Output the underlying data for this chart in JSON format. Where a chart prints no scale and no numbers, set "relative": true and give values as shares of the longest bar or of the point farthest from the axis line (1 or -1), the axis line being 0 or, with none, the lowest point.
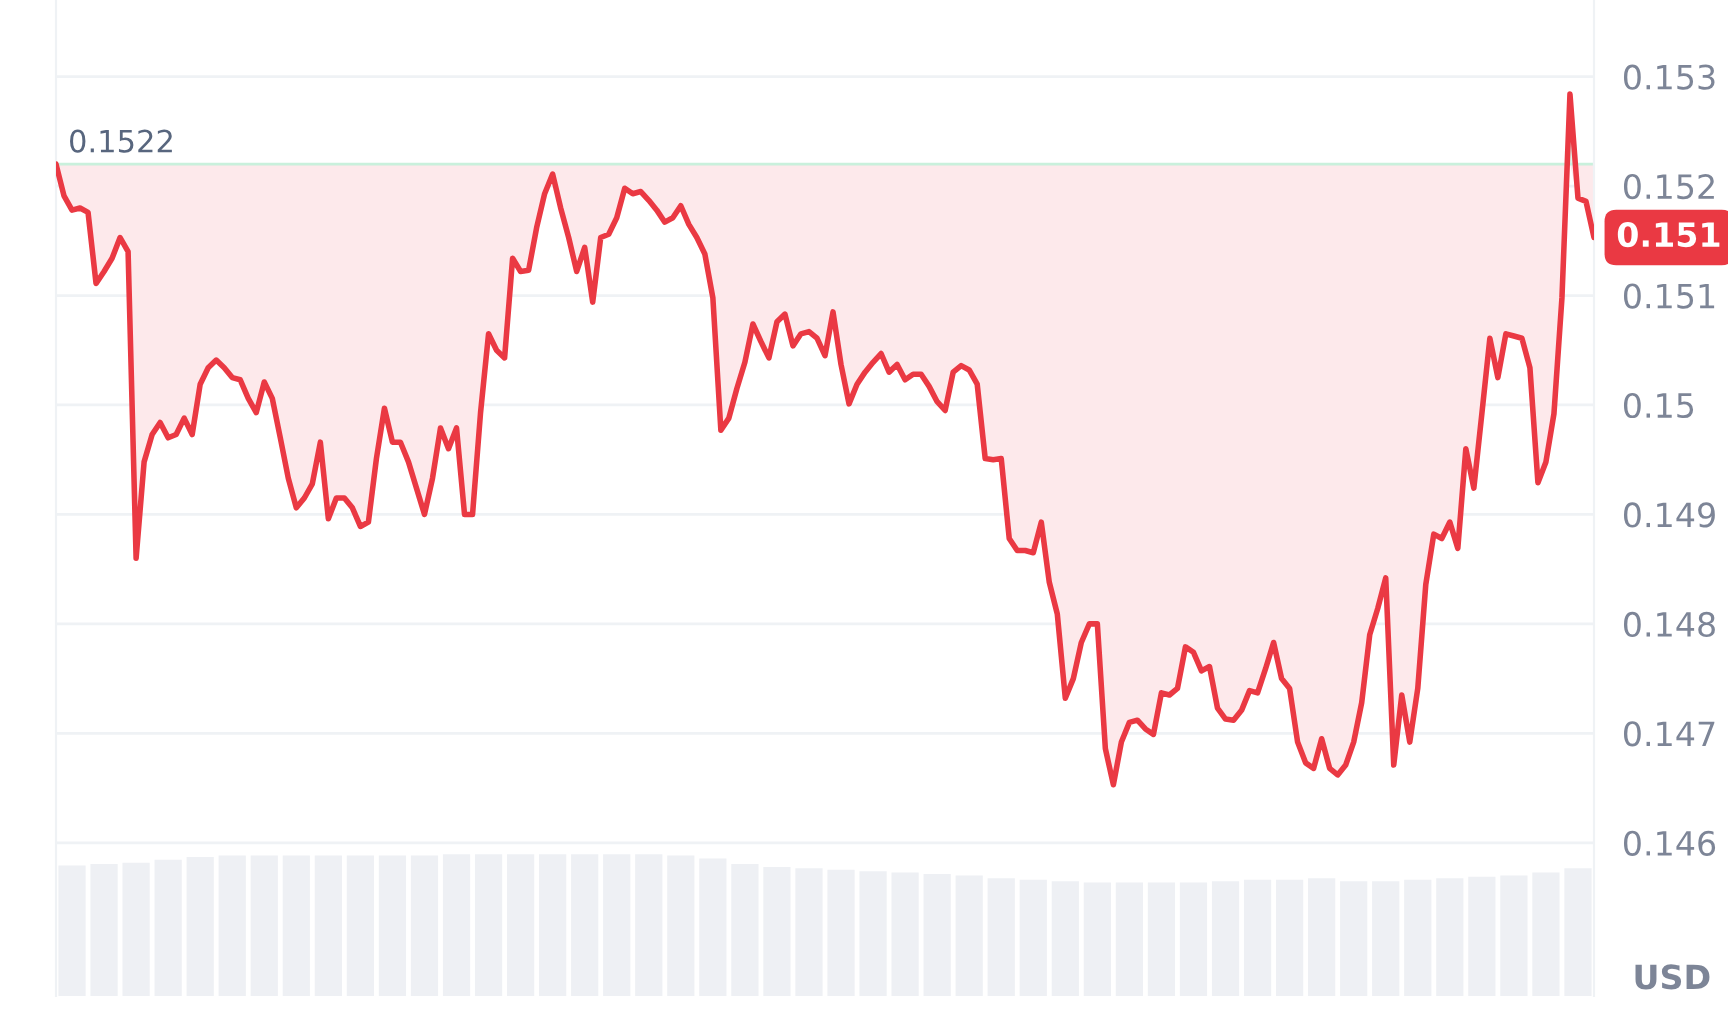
{
  "chart_data": [
    {
      "type": "line",
      "categories": [
        null,
        null,
        null,
        null,
        null,
        null,
        null,
        null,
        null,
        null,
        null,
        null,
        null,
        null,
        null,
        null,
        null,
        null,
        null,
        null,
        null,
        null,
        null,
        null,
        null,
        null,
        null,
        null,
        null,
        null,
        null,
        null,
        null,
        null,
        null,
        null,
        null,
        null,
        null,
        null,
        null,
        null,
        null,
        null,
        null,
        null,
        null,
        null,
        null,
        null,
        null,
        null,
        null,
        null,
        null,
        null,
        null,
        null,
        null,
        null,
        null,
        null,
        null,
        null,
        null,
        null,
        null,
        null,
        null,
        null,
        null,
        null,
        null,
        null,
        null,
        null,
        null,
        null,
        null,
        null,
        null,
        null,
        null,
        null,
        null,
        null,
        null,
        null,
        null,
        null,
        null,
        null,
        null,
        null,
        null,
        null,
        null,
        null,
        null,
        null,
        null,
        null,
        null,
        null,
        null,
        null,
        null,
        null,
        null,
        null,
        null,
        null,
        null,
        null,
        null,
        null,
        null,
        null,
        null,
        null,
        null,
        null,
        null,
        null,
        null,
        null,
        null,
        null,
        null,
        null,
        null,
        null,
        null,
        null,
        null,
        null,
        null,
        null,
        null,
        null,
        null,
        null,
        null,
        null,
        null,
        null,
        null,
        null,
        null,
        null,
        null,
        null,
        null,
        null,
        null,
        null,
        null,
        null,
        null,
        null,
        null,
        null,
        null,
        null,
        null,
        null,
        null,
        null,
        null,
        null,
        null,
        null,
        null,
        null,
        null,
        null,
        null,
        null,
        null,
        null,
        null,
        null,
        null,
        null,
        null,
        null,
        null,
        null,
        null,
        null,
        null,
        null,
        null
      ],
      "series": [
        {
          "color": "#ea3943",
          "values": [
            0.1522,
            0.15191,
            0.15178,
            0.1518,
            0.15176,
            0.15111,
            0.15122,
            0.15134,
            0.15153,
            0.1514,
            0.1486,
            0.14948,
            0.14973,
            0.14984,
            0.1497,
            0.14973,
            0.14988,
            0.14973,
            0.15019,
            0.15034,
            0.15041,
            0.15034,
            0.15025,
            0.15023,
            0.15006,
            0.14993,
            0.15021,
            0.15006,
            0.1497,
            0.14933,
            0.14906,
            0.14915,
            0.14928,
            0.14966,
            0.14896,
            0.14915,
            0.14915,
            0.14906,
            0.14889,
            0.14893,
            0.14951,
            0.14997,
            0.14966,
            0.14966,
            0.14948,
            0.14924,
            0.149,
            0.14933,
            0.14979,
            0.1496,
            0.14979,
            0.149,
            0.149,
            0.14993,
            0.15065,
            0.1505,
            0.15043,
            0.15134,
            0.15122,
            0.15123,
            0.15162,
            0.15193,
            0.15211,
            0.1518,
            0.15153,
            0.15122,
            0.15144,
            0.15094,
            0.15153,
            0.15156,
            0.15171,
            0.15198,
            0.15193,
            0.15195,
            0.15187,
            0.15178,
            0.15167,
            0.15171,
            0.15182,
            0.15165,
            0.15153,
            0.15138,
            0.15098,
            0.14977,
            0.14988,
            0.15015,
            0.15039,
            0.15074,
            0.15058,
            0.15043,
            0.15076,
            0.15083,
            0.15054,
            0.15065,
            0.15067,
            0.15061,
            0.15045,
            0.15085,
            0.15037,
            0.15001,
            0.15019,
            0.1503,
            0.15039,
            0.15047,
            0.1503,
            0.15037,
            0.15023,
            0.15028,
            0.15028,
            0.15017,
            0.15003,
            0.14995,
            0.1503,
            0.15036,
            0.15032,
            0.15019,
            0.14951,
            0.1495,
            0.14951,
            0.14878,
            0.14867,
            0.14867,
            0.14865,
            0.14893,
            0.14838,
            0.14809,
            0.14732,
            0.1475,
            0.14783,
            0.148,
            0.148,
            0.14686,
            0.14653,
            0.14692,
            0.1471,
            0.14712,
            0.14704,
            0.14699,
            0.14737,
            0.14735,
            0.14741,
            0.14779,
            0.14774,
            0.14757,
            0.14761,
            0.14723,
            0.14713,
            0.14712,
            0.14721,
            0.14739,
            0.14737,
            0.14759,
            0.14783,
            0.1475,
            0.14741,
            0.14692,
            0.14673,
            0.14668,
            0.14695,
            0.14668,
            0.14662,
            0.14671,
            0.14692,
            0.14728,
            0.1479,
            0.14814,
            0.14842,
            0.14671,
            0.14735,
            0.14692,
            0.14741,
            0.14836,
            0.14882,
            0.14878,
            0.14893,
            0.14869,
            0.1496,
            0.14924,
            0.14992,
            0.15061,
            0.15025,
            0.15065,
            0.15063,
            0.15061,
            0.15034,
            0.14929,
            0.14948,
            0.14992,
            0.15098,
            0.15284,
            0.15189,
            0.15186,
            0.15153
          ],
          "lower": [
            0.1522,
            0.15191,
            0.15178,
            0.1518,
            0.15176,
            0.15111,
            0.15122,
            0.15134,
            0.15153,
            0.1514,
            0.1486,
            0.14948,
            0.14973,
            0.14984,
            0.1497,
            0.14973,
            0.14988,
            0.14973,
            0.15019,
            0.15034,
            0.15041,
            0.15034,
            0.15025,
            0.15023,
            0.15006,
            0.14993,
            0.15021,
            0.15006,
            0.1497,
            0.14933,
            0.14906,
            0.14915,
            0.14928,
            0.14966,
            0.14896,
            0.14915,
            0.14915,
            0.14906,
            0.14889,
            0.14893,
            0.14951,
            0.14997,
            0.14966,
            0.14966,
            0.14948,
            0.14924,
            0.149,
            0.14933,
            0.14979,
            0.1496,
            0.14979,
            0.149,
            0.149,
            0.14993,
            0.15065,
            0.1505,
            0.15043,
            0.15134,
            0.15122,
            0.15123,
            0.15162,
            0.15193,
            0.15211,
            0.1518,
            0.15153,
            0.15122,
            0.15144,
            0.15094,
            0.15153,
            0.15156,
            0.15171,
            0.15198,
            0.15193,
            0.15195,
            0.15187,
            0.15178,
            0.15167,
            0.15171,
            0.15182,
            0.15165,
            0.15153,
            0.15138,
            0.15098,
            0.14977,
            0.14988,
            0.15015,
            0.15039,
            0.15074,
            0.15058,
            0.15043,
            0.15076,
            0.15083,
            0.15054,
            0.15065,
            0.15067,
            0.15061,
            0.15045,
            0.15085,
            0.15037,
            0.15001,
            0.15019,
            0.1503,
            0.15039,
            0.15047,
            0.1503,
            0.15037,
            0.15023,
            0.15028,
            0.15028,
            0.15017,
            0.15003,
            0.14995,
            0.1503,
            0.15036,
            0.15032,
            0.15019,
            0.14951,
            0.1495,
            0.14951,
            0.14878,
            0.14867,
            0.14867,
            0.14865,
            0.14893,
            0.14838,
            0.14809,
            0.14732,
            0.1475,
            0.14783,
            0.148,
            0.148,
            0.14686,
            0.14653,
            0.14692,
            0.1471,
            0.14712,
            0.14704,
            0.14699,
            0.14737,
            0.14735,
            0.14741,
            0.14779,
            0.14774,
            0.14757,
            0.14761,
            0.14723,
            0.14713,
            0.14712,
            0.14721,
            0.14739,
            0.14737,
            0.14759,
            0.14783,
            0.1475,
            0.14741,
            0.14692,
            0.14673,
            0.14668,
            0.14695,
            0.14668,
            0.14662,
            0.14671,
            0.14692,
            0.14728,
            0.1479,
            0.14814,
            0.14842,
            0.14671,
            0.14735,
            0.14692,
            0.14741,
            0.14836,
            0.14882,
            0.14878,
            0.14893,
            0.14869,
            0.1496,
            0.14924,
            0.14992,
            0.15061,
            0.15025,
            0.15065,
            0.15063,
            0.15061,
            0.15034,
            0.14929,
            0.14948,
            0.14992,
            0.15098,
            0.1522,
            0.15189,
            0.15186,
            0.15153
          ],
          "upper": [
            0.1522,
            0.1522,
            0.1522,
            0.1522,
            0.1522,
            0.1522,
            0.1522,
            0.1522,
            0.1522,
            0.1522,
            0.1522,
            0.1522,
            0.1522,
            0.1522,
            0.1522,
            0.1522,
            0.1522,
            0.1522,
            0.1522,
            0.1522,
            0.1522,
            0.1522,
            0.1522,
            0.1522,
            0.1522,
            0.1522,
            0.1522,
            0.1522,
            0.1522,
            0.1522,
            0.1522,
            0.1522,
            0.1522,
            0.1522,
            0.1522,
            0.1522,
            0.1522,
            0.1522,
            0.1522,
            0.1522,
            0.1522,
            0.1522,
            0.1522,
            0.1522,
            0.1522,
            0.1522,
            0.1522,
            0.1522,
            0.1522,
            0.1522,
            0.1522,
            0.1522,
            0.1522,
            0.1522,
            0.1522,
            0.1522,
            0.1522,
            0.1522,
            0.1522,
            0.1522,
            0.1522,
            0.1522,
            0.1522,
            0.1522,
            0.1522,
            0.1522,
            0.1522,
            0.1522,
            0.1522,
            0.1522,
            0.1522,
            0.1522,
            0.1522,
            0.1522,
            0.1522,
            0.1522,
            0.1522,
            0.1522,
            0.1522,
            0.1522,
            0.1522,
            0.1522,
            0.1522,
            0.1522,
            0.1522,
            0.1522,
            0.1522,
            0.1522,
            0.1522,
            0.1522,
            0.1522,
            0.1522,
            0.1522,
            0.1522,
            0.1522,
            0.1522,
            0.1522,
            0.1522,
            0.1522,
            0.1522,
            0.1522,
            0.1522,
            0.1522,
            0.1522,
            0.1522,
            0.1522,
            0.1522,
            0.1522,
            0.1522,
            0.1522,
            0.1522,
            0.1522,
            0.1522,
            0.1522,
            0.1522,
            0.1522,
            0.1522,
            0.1522,
            0.1522,
            0.1522,
            0.1522,
            0.1522,
            0.1522,
            0.1522,
            0.1522,
            0.1522,
            0.1522,
            0.1522,
            0.1522,
            0.1522,
            0.1522,
            0.1522,
            0.1522,
            0.1522,
            0.1522,
            0.1522,
            0.1522,
            0.1522,
            0.1522,
            0.1522,
            0.1522,
            0.1522,
            0.1522,
            0.1522,
            0.1522,
            0.1522,
            0.1522,
            0.1522,
            0.1522,
            0.1522,
            0.1522,
            0.1522,
            0.1522,
            0.1522,
            0.1522,
            0.1522,
            0.1522,
            0.1522,
            0.1522,
            0.1522,
            0.1522,
            0.1522,
            0.1522,
            0.1522,
            0.1522,
            0.1522,
            0.1522,
            0.1522,
            0.1522,
            0.1522,
            0.1522,
            0.1522,
            0.1522,
            0.1522,
            0.1522,
            0.1522,
            0.1522,
            0.1522,
            0.1522,
            0.1522,
            0.1522,
            0.1522,
            0.1522,
            0.1522,
            0.1522,
            0.1522,
            0.1522,
            0.1522,
            0.1522,
            0.1522,
            0.1522,
            0.1522,
            0.1522
          ]
        }
      ],
      "ylim": [
        0.1446,
        0.1537
      ],
      "yticks": [
        0.146,
        0.147,
        0.148,
        0.149,
        0.15,
        0.151,
        0.152,
        0.153
      ],
      "ylabel": "USD",
      "grid": "y",
      "ref_lines": [
        {
          "axis": "y",
          "value": 0.1522,
          "label": "0.1522",
          "color": "#c9f0dc"
        }
      ],
      "annotations": [
        "0.151"
      ]
    },
    {
      "type": "bar",
      "relative": true,
      "color": "#eef0f4",
      "categories": [
        null,
        null,
        null,
        null,
        null,
        null,
        null,
        null,
        null,
        null,
        null,
        null,
        null,
        null,
        null,
        null,
        null,
        null,
        null,
        null,
        null,
        null,
        null,
        null,
        null,
        null,
        null,
        null,
        null,
        null,
        null,
        null,
        null,
        null,
        null,
        null,
        null,
        null,
        null,
        null,
        null,
        null,
        null,
        null,
        null,
        null,
        null,
        null
      ],
      "values": [
        0.92,
        0.93,
        0.94,
        0.96,
        0.98,
        0.99,
        0.99,
        0.99,
        0.99,
        0.99,
        0.99,
        0.99,
        1.0,
        1.0,
        1.0,
        1.0,
        1.0,
        1.0,
        1.0,
        0.99,
        0.97,
        0.93,
        0.91,
        0.9,
        0.89,
        0.88,
        0.87,
        0.86,
        0.85,
        0.83,
        0.82,
        0.81,
        0.8,
        0.8,
        0.8,
        0.8,
        0.81,
        0.82,
        0.82,
        0.83,
        0.81,
        0.81,
        0.82,
        0.83,
        0.84,
        0.85,
        0.87,
        0.9
      ]
    }
  ]
}
